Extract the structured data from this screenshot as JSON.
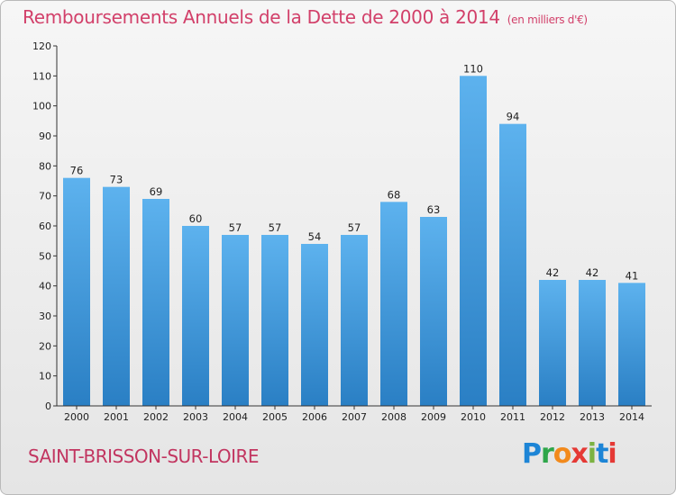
{
  "chart_data": {
    "type": "bar",
    "title": "Remboursements Annuels de la Dette de 2000 à 2014",
    "unit": "(en milliers d'€)",
    "categories": [
      "2000",
      "2001",
      "2002",
      "2003",
      "2004",
      "2005",
      "2006",
      "2007",
      "2008",
      "2009",
      "2010",
      "2011",
      "2012",
      "2013",
      "2014"
    ],
    "values": [
      76,
      73,
      69,
      60,
      57,
      57,
      54,
      57,
      68,
      63,
      110,
      94,
      42,
      42,
      41
    ],
    "data_labels": [
      "76",
      "73",
      "69",
      "60",
      "57",
      "57",
      "54",
      "57",
      "68",
      "63",
      "110",
      "94",
      "42",
      "42",
      "41"
    ],
    "ylim": [
      0,
      120
    ],
    "yticks": [
      0,
      10,
      20,
      30,
      40,
      50,
      60,
      70,
      80,
      90,
      100,
      110,
      120
    ],
    "grid": false,
    "bar_color": "#4aa3e4"
  },
  "footer": {
    "commune": "SAINT-BRISSON-SUR-LOIRE",
    "logo_letters": [
      "P",
      "r",
      "o",
      "x",
      "i",
      "t",
      "i"
    ],
    "logo_colors": [
      "#1d85d6",
      "#2ea64a",
      "#f28a1c",
      "#e53935",
      "#7cb342",
      "#1d85d6",
      "#e53935"
    ]
  }
}
